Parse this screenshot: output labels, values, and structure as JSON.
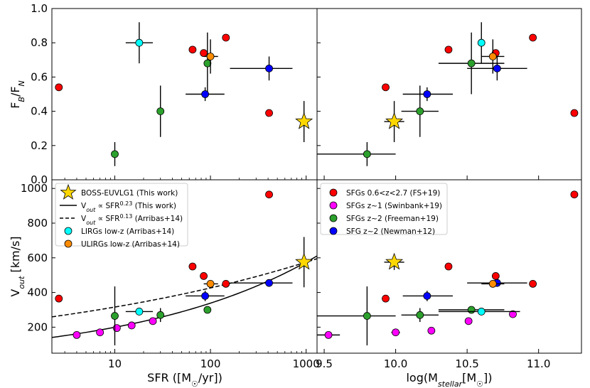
{
  "chart_data": [
    {
      "panel": "top-left",
      "type": "scatter",
      "xscale": "log",
      "xlim": [
        2.2,
        1300
      ],
      "ylim": [
        0.0,
        1.0
      ],
      "ylabel": "F_B/F_N",
      "yticks": [
        "0.0",
        "0.2",
        "0.4",
        "0.6",
        "0.8",
        "1.0"
      ],
      "series": [
        {
          "id": "fs",
          "color": "#ff0000",
          "points": [
            {
              "x": 2.6,
              "y": 0.54
            },
            {
              "x": 65,
              "y": 0.76
            },
            {
              "x": 85,
              "y": 0.74
            },
            {
              "x": 145,
              "y": 0.83
            },
            {
              "x": 410,
              "y": 0.39
            }
          ]
        },
        {
          "id": "freeman",
          "color": "#2ca02c",
          "points": [
            {
              "x": 10,
              "y": 0.15,
              "yerr": 0.07
            },
            {
              "x": 30,
              "y": 0.4,
              "yerr": 0.15
            },
            {
              "x": 93,
              "y": 0.68,
              "yerr": 0.18
            }
          ]
        },
        {
          "id": "newman",
          "color": "#0000ff",
          "points": [
            {
              "x": 88,
              "y": 0.5,
              "xlo": 55,
              "xhi": 140,
              "yerr": 0.04
            },
            {
              "x": 410,
              "y": 0.65,
              "xlo": 160,
              "xhi": 720,
              "yerr": 0.07
            }
          ]
        },
        {
          "id": "lirg",
          "color": "#00ffff",
          "points": [
            {
              "x": 18,
              "y": 0.8,
              "xlo": 13,
              "xhi": 25,
              "yerr": 0.12
            }
          ]
        },
        {
          "id": "ulirg",
          "color": "#ff8c00",
          "points": [
            {
              "x": 100,
              "y": 0.72,
              "xlo": 85,
              "xhi": 120,
              "yerr": 0.1
            }
          ]
        },
        {
          "id": "star",
          "color": "#ffd700",
          "marker": "star",
          "points": [
            {
              "x": 950,
              "y": 0.34,
              "yerr": 0.12
            }
          ]
        }
      ]
    },
    {
      "panel": "top-right",
      "type": "scatter",
      "xlim": [
        9.45,
        11.3
      ],
      "ylim": [
        0.0,
        1.0
      ],
      "series": [
        {
          "id": "fs",
          "color": "#ff0000",
          "points": [
            {
              "x": 9.93,
              "y": 0.54
            },
            {
              "x": 10.37,
              "y": 0.76
            },
            {
              "x": 10.7,
              "y": 0.74
            },
            {
              "x": 10.96,
              "y": 0.83
            },
            {
              "x": 11.25,
              "y": 0.39
            }
          ]
        },
        {
          "id": "freeman",
          "color": "#2ca02c",
          "points": [
            {
              "x": 9.8,
              "y": 0.15,
              "xlo": 9.45,
              "xhi": 10.0,
              "yerr": 0.07
            },
            {
              "x": 10.17,
              "y": 0.4,
              "xlo": 10.04,
              "xhi": 10.3,
              "yerr": 0.15
            },
            {
              "x": 10.53,
              "y": 0.68,
              "xlo": 10.3,
              "xhi": 10.76,
              "yerr": 0.18
            }
          ]
        },
        {
          "id": "newman",
          "color": "#0000ff",
          "points": [
            {
              "x": 10.22,
              "y": 0.5,
              "xlo": 10.05,
              "xhi": 10.4,
              "yerr": 0.04
            },
            {
              "x": 10.71,
              "y": 0.65,
              "xlo": 10.5,
              "xhi": 10.92,
              "yerr": 0.07
            }
          ]
        },
        {
          "id": "lirg",
          "color": "#00ffff",
          "points": [
            {
              "x": 10.6,
              "y": 0.8,
              "yerr": 0.12
            }
          ]
        },
        {
          "id": "ulirg",
          "color": "#ff8c00",
          "points": [
            {
              "x": 10.68,
              "y": 0.72,
              "xlo": 10.6,
              "xhi": 10.76,
              "yerr": 0.1
            }
          ]
        },
        {
          "id": "star",
          "color": "#ffd700",
          "marker": "star",
          "points": [
            {
              "x": 9.99,
              "y": 0.34,
              "xlo": 9.92,
              "xhi": 10.06,
              "yerr": 0.12
            }
          ]
        }
      ]
    },
    {
      "panel": "bottom-left",
      "type": "scatter",
      "xscale": "log",
      "xlim": [
        2.2,
        1300
      ],
      "ylim": [
        50,
        1050
      ],
      "xlabel": "SFR ([M☉/yr])",
      "ylabel": "V_out [km/s]",
      "xticks": [
        "10",
        "100",
        "1000"
      ],
      "yticks": [
        "200",
        "400",
        "600",
        "800",
        "1000"
      ],
      "curves": [
        {
          "id": "fit_this_work",
          "style": "solid",
          "norm_at_1000": 575,
          "exponent": 0.23
        },
        {
          "id": "fit_arribas",
          "style": "dashed",
          "norm_at_1000": 575,
          "exponent": 0.13
        }
      ],
      "series": [
        {
          "id": "fs",
          "color": "#ff0000",
          "points": [
            {
              "x": 2.6,
              "y": 365
            },
            {
              "x": 65,
              "y": 550
            },
            {
              "x": 85,
              "y": 495
            },
            {
              "x": 145,
              "y": 450
            },
            {
              "x": 410,
              "y": 965
            }
          ]
        },
        {
          "id": "swinbank",
          "color": "#ff00ff",
          "points": [
            {
              "x": 4,
              "y": 155
            },
            {
              "x": 7,
              "y": 170
            },
            {
              "x": 10.5,
              "y": 195
            },
            {
              "x": 15,
              "y": 210
            },
            {
              "x": 25,
              "y": 235
            }
          ]
        },
        {
          "id": "freeman",
          "color": "#2ca02c",
          "points": [
            {
              "x": 10,
              "y": 265,
              "yerr": 170
            },
            {
              "x": 30,
              "y": 270,
              "yerr": 40
            },
            {
              "x": 93,
              "y": 300
            }
          ]
        },
        {
          "id": "newman",
          "color": "#0000ff",
          "points": [
            {
              "x": 88,
              "y": 380,
              "xlo": 55,
              "xhi": 140,
              "yerr": 30
            },
            {
              "x": 410,
              "y": 455,
              "xlo": 160,
              "xhi": 720
            }
          ]
        },
        {
          "id": "lirg",
          "color": "#00ffff",
          "points": [
            {
              "x": 18,
              "y": 290,
              "xlo": 13,
              "xhi": 25
            }
          ]
        },
        {
          "id": "ulirg",
          "color": "#ff8c00",
          "points": [
            {
              "x": 100,
              "y": 450,
              "xlo": 85,
              "xhi": 120
            }
          ]
        },
        {
          "id": "star",
          "color": "#ffd700",
          "marker": "star",
          "points": [
            {
              "x": 950,
              "y": 575,
              "yerr": 145
            }
          ]
        }
      ]
    },
    {
      "panel": "bottom-right",
      "type": "scatter",
      "xlim": [
        9.45,
        11.3
      ],
      "ylim": [
        50,
        1050
      ],
      "xlabel": "log(M_stellar[M☉])",
      "xticks": [
        "9.5",
        "10.0",
        "10.5",
        "11.0"
      ],
      "series": [
        {
          "id": "fs",
          "color": "#ff0000",
          "points": [
            {
              "x": 9.93,
              "y": 365
            },
            {
              "x": 10.37,
              "y": 550
            },
            {
              "x": 10.7,
              "y": 495
            },
            {
              "x": 10.96,
              "y": 450
            },
            {
              "x": 11.25,
              "y": 965
            }
          ]
        },
        {
          "id": "swinbank",
          "color": "#ff00ff",
          "points": [
            {
              "x": 9.53,
              "y": 155,
              "xlo": 9.45,
              "xhi": 9.61
            },
            {
              "x": 10.0,
              "y": 170,
              "xlo": 9.97,
              "xhi": 10.03
            },
            {
              "x": 10.25,
              "y": 180
            },
            {
              "x": 10.51,
              "y": 235
            },
            {
              "x": 10.82,
              "y": 275
            }
          ]
        },
        {
          "id": "freeman",
          "color": "#2ca02c",
          "points": [
            {
              "x": 9.8,
              "y": 265,
              "xlo": 9.45,
              "xhi": 10.0,
              "yerr": 170
            },
            {
              "x": 10.17,
              "y": 270,
              "xlo": 10.04,
              "xhi": 10.3,
              "yerr": 40
            },
            {
              "x": 10.53,
              "y": 300,
              "xlo": 10.3,
              "xhi": 10.76
            }
          ]
        },
        {
          "id": "newman",
          "color": "#0000ff",
          "points": [
            {
              "x": 10.22,
              "y": 380,
              "xlo": 10.05,
              "xhi": 10.4,
              "yerr": 30
            },
            {
              "x": 10.71,
              "y": 455,
              "xlo": 10.5,
              "xhi": 10.92
            }
          ]
        },
        {
          "id": "lirg",
          "color": "#00ffff",
          "points": [
            {
              "x": 10.6,
              "y": 290,
              "xlo": 10.3,
              "xhi": 10.87
            }
          ]
        },
        {
          "id": "ulirg",
          "color": "#ff8c00",
          "points": [
            {
              "x": 10.68,
              "y": 450,
              "xlo": 10.6,
              "xhi": 10.76
            }
          ]
        },
        {
          "id": "star",
          "color": "#ffd700",
          "marker": "star",
          "points": [
            {
              "x": 9.99,
              "y": 575,
              "xlo": 9.92,
              "xhi": 10.06,
              "yerr": 45
            }
          ]
        }
      ]
    }
  ],
  "legend_left": [
    {
      "marker": "star",
      "color": "#ffd700",
      "label": "BOSS-EUVLG1 (This work)"
    },
    {
      "marker": "solid",
      "color": "#000000",
      "label": "V",
      "sub": "out",
      "mid": " ∝ SFR",
      "sup": "0.23",
      "tail": " (This work)"
    },
    {
      "marker": "dashed",
      "color": "#000000",
      "label": "V",
      "sub": "out",
      "mid": " ∝ SFR",
      "sup": "0.13",
      "tail": " (Arribas+14)"
    },
    {
      "marker": "circle",
      "color": "#00ffff",
      "label": "LIRGs low-z (Arribas+14)"
    },
    {
      "marker": "circle",
      "color": "#ff8c00",
      "label": "ULIRGs low-z (Arribas+14)"
    }
  ],
  "legend_right": [
    {
      "marker": "circle",
      "color": "#ff0000",
      "label": "SFGs 0.6<z<2.7 (FS+19)"
    },
    {
      "marker": "circle",
      "color": "#ff00ff",
      "label": "SFGs z~1 (Swinbank+19)"
    },
    {
      "marker": "circle",
      "color": "#2ca02c",
      "label": "SFGs z~2 (Freeman+19)"
    },
    {
      "marker": "circle",
      "color": "#0000ff",
      "label": "SFG z~2 (Newman+12)"
    }
  ]
}
